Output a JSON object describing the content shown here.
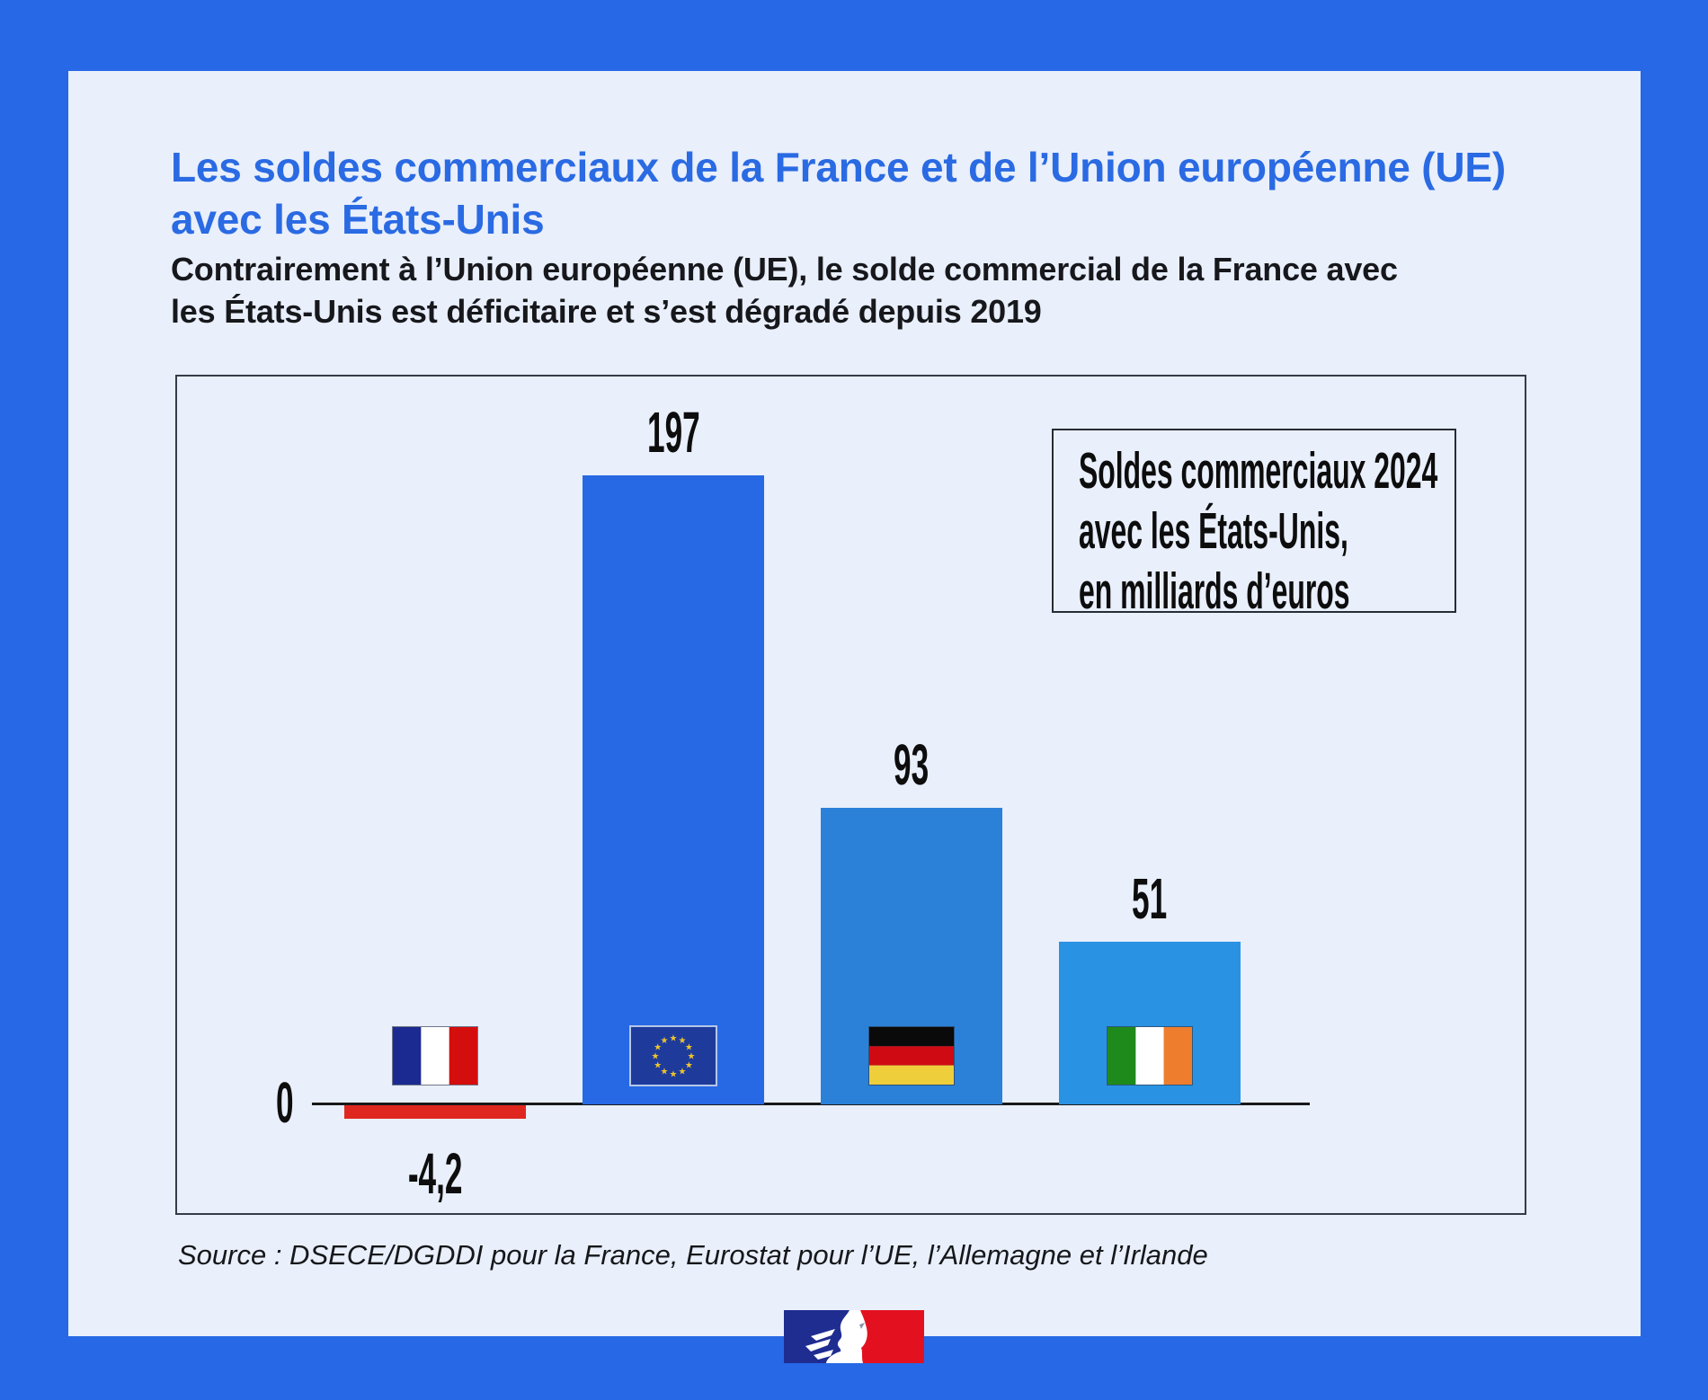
{
  "header": {
    "title_line1": "Les soldes commerciaux de la France et de l’Union européenne (UE)",
    "title_line2": "avec les États-Unis",
    "subtitle_line1": "Contrairement à l’Union européenne (UE), le solde commercial de la France avec",
    "subtitle_line2": "les États-Unis est déficitaire et s’est dégradé depuis 2019"
  },
  "chart_data": {
    "type": "bar",
    "title": "Soldes commerciaux 2024 avec les États-Unis, en milliards d’euros",
    "categories": [
      "France",
      "Union européenne (UE)",
      "Allemagne",
      "Irlande"
    ],
    "values": [
      -4.2,
      197,
      93,
      51
    ],
    "zero_label": "0",
    "ylim": [
      -20,
      220
    ],
    "grid": false,
    "legend_position": "top-right",
    "legend_lines": [
      "Soldes commerciaux 2024",
      "avec les États-Unis,",
      "en milliards d’euros"
    ],
    "bars": [
      {
        "id": "france",
        "label": "-4,2",
        "value": -4.2,
        "color": "#e0271f",
        "flag": "fr",
        "flag_name": "france-flag-icon"
      },
      {
        "id": "eu",
        "label": "197",
        "value": 197,
        "color": "#2769e5",
        "flag": "eu",
        "flag_name": "eu-flag-icon"
      },
      {
        "id": "germany",
        "label": "93",
        "value": 93,
        "color": "#2b81d8",
        "flag": "de",
        "flag_name": "germany-flag-icon"
      },
      {
        "id": "ireland",
        "label": "51",
        "value": 51,
        "color": "#2a92e3",
        "flag": "ie",
        "flag_name": "ireland-flag-icon"
      }
    ]
  },
  "source": "Source : DSECE/DGDDI pour la France, Eurostat pour l’UE, l’Allemagne et l’Irlande",
  "footer": {
    "logo": "marianne-republique-francaise-logo"
  },
  "colors": {
    "outer_border": "#2668e5",
    "card_background": "#e9effb",
    "title_blue": "#2a6ae3",
    "axis": "#191919",
    "frame_border": "#353c47",
    "eu_bar": "#2769e5",
    "germany_bar": "#2b81d8",
    "ireland_bar": "#2a92e3",
    "france_bar": "#e0271f"
  }
}
